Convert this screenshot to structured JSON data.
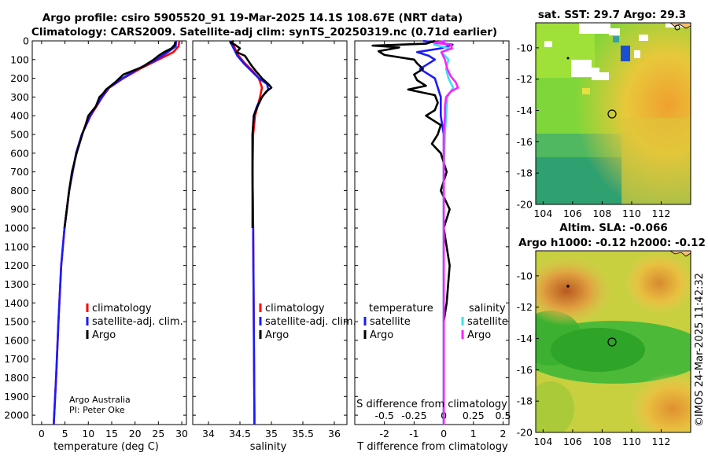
{
  "title": {
    "line1": "Argo profile: csiro 5905520_91 19-Mar-2025 14.1S 108.67E (NRT data)",
    "line2": "Climatology: CARS2009. Satellite-adj clim: synTS_20250319.nc (0.71d earlier)"
  },
  "credit": {
    "line1": "Argo Australia",
    "line2": "PI: Peter Oke"
  },
  "watermark": "©IMOS 24-Mar-2025 11:42:32",
  "colors": {
    "climatology": "#ff0000",
    "satellite": "#1a1aff",
    "argo": "#000000",
    "satellite_s": "#3de0ef",
    "argo_s": "#ff22ff"
  },
  "chart_data": [
    {
      "type": "line",
      "name": "temperature",
      "xlabel": "temperature (deg C)",
      "xlim": [
        -2,
        31
      ],
      "xticks": [
        0,
        5,
        10,
        15,
        20,
        25,
        30
      ],
      "ylim": [
        2050,
        0
      ],
      "yticks": [
        0,
        100,
        200,
        300,
        400,
        500,
        600,
        700,
        800,
        900,
        1000,
        1100,
        1200,
        1300,
        1400,
        1500,
        1600,
        1700,
        1800,
        1900,
        2000
      ],
      "legend": [
        "climatology",
        "satellite-adj. clim.",
        "Argo"
      ],
      "series": [
        {
          "name": "climatology",
          "depth": [
            0,
            30,
            60,
            100,
            150,
            200,
            250,
            300,
            400,
            500,
            600,
            800,
            1000,
            1200,
            1500,
            1800,
            2000,
            2050
          ],
          "values": [
            29.5,
            29.3,
            28.2,
            25.0,
            21.0,
            17.5,
            14.5,
            13.0,
            10.5,
            8.6,
            7.4,
            5.9,
            4.9,
            4.2,
            3.6,
            3.1,
            2.7,
            2.6
          ]
        },
        {
          "name": "satellite-adj. clim.",
          "depth": [
            0,
            30,
            60,
            100,
            150,
            200,
            250,
            300,
            400,
            500,
            600,
            800,
            1000,
            1200,
            1500,
            1800,
            2000,
            2050
          ],
          "values": [
            28.8,
            28.7,
            27.0,
            24.6,
            20.6,
            17.3,
            14.4,
            12.9,
            10.4,
            8.6,
            7.4,
            5.9,
            4.9,
            4.2,
            3.6,
            3.1,
            2.7,
            2.6
          ]
        },
        {
          "name": "Argo",
          "depth": [
            5,
            20,
            40,
            60,
            80,
            100,
            140,
            180,
            220,
            260,
            280,
            300,
            350,
            400,
            450,
            500,
            600,
            700,
            800,
            900,
            1000
          ],
          "values": [
            28.6,
            28.5,
            27.8,
            26.2,
            25.0,
            24.0,
            21.5,
            17.5,
            15.8,
            13.8,
            13.2,
            12.4,
            11.6,
            10.0,
            9.4,
            8.7,
            7.5,
            6.5,
            5.9,
            5.4,
            4.9
          ]
        }
      ]
    },
    {
      "type": "line",
      "name": "salinity",
      "xlabel": "salinity",
      "xlim": [
        33.75,
        36.2
      ],
      "xticks": [
        34,
        34.5,
        35,
        35.5,
        36
      ],
      "ylim": [
        2050,
        0
      ],
      "legend": [
        "climatology",
        "satellite-adj. clim.",
        "Argo"
      ],
      "series": [
        {
          "name": "climatology",
          "depth": [
            0,
            40,
            80,
            120,
            160,
            200,
            250,
            300,
            350,
            400,
            500,
            700,
            1000,
            1500,
            2000,
            2050
          ],
          "values": [
            34.37,
            34.42,
            34.48,
            34.58,
            34.7,
            34.8,
            34.85,
            34.82,
            34.78,
            34.74,
            34.71,
            34.7,
            34.71,
            34.72,
            34.73,
            34.73
          ]
        },
        {
          "name": "satellite-adj. clim.",
          "depth": [
            0,
            40,
            80,
            120,
            160,
            200,
            230,
            260,
            300,
            350,
            400,
            500,
            700,
            1000,
            1500,
            2000,
            2050
          ],
          "values": [
            34.34,
            34.4,
            34.46,
            34.56,
            34.68,
            34.8,
            34.93,
            34.95,
            34.85,
            34.77,
            34.72,
            34.7,
            34.7,
            34.71,
            34.72,
            34.73,
            34.73
          ]
        },
        {
          "name": "Argo",
          "depth": [
            0,
            10,
            20,
            40,
            60,
            80,
            100,
            130,
            160,
            200,
            230,
            250,
            270,
            300,
            350,
            400,
            500,
            700,
            900,
            1000
          ],
          "values": [
            34.4,
            34.35,
            34.42,
            34.5,
            34.45,
            34.58,
            34.62,
            34.68,
            34.75,
            34.85,
            34.95,
            35.0,
            34.92,
            34.85,
            34.78,
            34.72,
            34.7,
            34.7,
            34.7,
            34.7
          ]
        }
      ]
    },
    {
      "type": "line",
      "name": "difference",
      "xlabel": "T difference from climatology",
      "x2label": "S difference from climatology",
      "xlim": [
        -3,
        2.2
      ],
      "xticks": [
        -2,
        -1,
        0,
        1,
        2
      ],
      "x2lim": [
        -0.75,
        0.55
      ],
      "x2ticks": [
        -0.5,
        -0.25,
        0,
        0.25,
        0.5
      ],
      "ylim": [
        2050,
        0
      ],
      "legend_headers": [
        "temperature",
        "salinity"
      ],
      "legend_t": [
        "satellite",
        "Argo"
      ],
      "legend_s": [
        "satellite",
        "Argo"
      ],
      "series": [
        {
          "name": "T satellite",
          "axis": "T",
          "depth": [
            0,
            20,
            40,
            60,
            80,
            100,
            150,
            200,
            300,
            400,
            500,
            600,
            800,
            1000,
            1500,
            2000,
            2050
          ],
          "values": [
            -0.7,
            0.3,
            -0.1,
            -0.9,
            -0.5,
            -0.3,
            -0.8,
            -0.3,
            -0.1,
            -0.1,
            0,
            0,
            0,
            0,
            0,
            0,
            0
          ]
        },
        {
          "name": "T Argo",
          "axis": "T",
          "depth": [
            0,
            15,
            25,
            35,
            55,
            75,
            100,
            120,
            150,
            180,
            210,
            240,
            260,
            290,
            330,
            370,
            400,
            450,
            500,
            550,
            600,
            700,
            800,
            900,
            1000,
            1100,
            1200,
            1400,
            1500
          ],
          "values": [
            -0.3,
            -0.6,
            -2.4,
            -1.5,
            -2.2,
            -2.0,
            -1.0,
            -0.9,
            -0.7,
            -1.0,
            -0.9,
            -0.6,
            -1.2,
            -0.3,
            -0.2,
            -0.3,
            -0.6,
            -0.1,
            -0.2,
            -0.4,
            -0.1,
            0.1,
            -0.1,
            0.2,
            0,
            0.1,
            0.2,
            0.1,
            0
          ]
        },
        {
          "name": "S satellite",
          "axis": "S",
          "depth": [
            0,
            20,
            40,
            60,
            100,
            150,
            200,
            250,
            300,
            400,
            500,
            700,
            1000,
            1500,
            2000,
            2050
          ],
          "values": [
            0,
            -0.08,
            0.05,
            -0.02,
            0.04,
            0.02,
            0.04,
            0.08,
            0.03,
            0.02,
            0.01,
            0,
            0,
            0,
            0,
            0
          ]
        },
        {
          "name": "S Argo",
          "axis": "S",
          "depth": [
            0,
            10,
            20,
            40,
            60,
            100,
            150,
            190,
            220,
            250,
            270,
            300,
            350,
            400,
            500,
            700,
            1000,
            1500,
            2000,
            2050
          ],
          "values": [
            0.02,
            -0.08,
            0.06,
            0.07,
            -0.02,
            0.01,
            0.03,
            0.06,
            0.1,
            0.12,
            0.06,
            0.02,
            0.01,
            0.01,
            0,
            0,
            0,
            0,
            0,
            0
          ]
        }
      ]
    },
    {
      "type": "heatmap",
      "name": "sat-sst-map",
      "title": "sat. SST: 29.7 Argo: 29.3",
      "xlim": [
        103.5,
        114
      ],
      "ylim": [
        -20,
        -8.4
      ],
      "xticks": [
        104,
        106,
        108,
        110,
        112
      ],
      "yticks": [
        -10,
        -12,
        -14,
        -16,
        -18,
        -20
      ],
      "argo_position": {
        "lon": 108.67,
        "lat": -14.1
      }
    },
    {
      "type": "heatmap",
      "name": "sla-map",
      "title": "Altim. SLA: -0.066",
      "subtitle": "Argo h1000: -0.12 h2000: -0.12",
      "xlim": [
        103.5,
        114
      ],
      "ylim": [
        -20,
        -8.4
      ],
      "xticks": [
        104,
        106,
        108,
        110,
        112
      ],
      "yticks": [
        -10,
        -12,
        -14,
        -16,
        -18,
        -20
      ],
      "argo_position": {
        "lon": 108.67,
        "lat": -14.1
      }
    }
  ]
}
